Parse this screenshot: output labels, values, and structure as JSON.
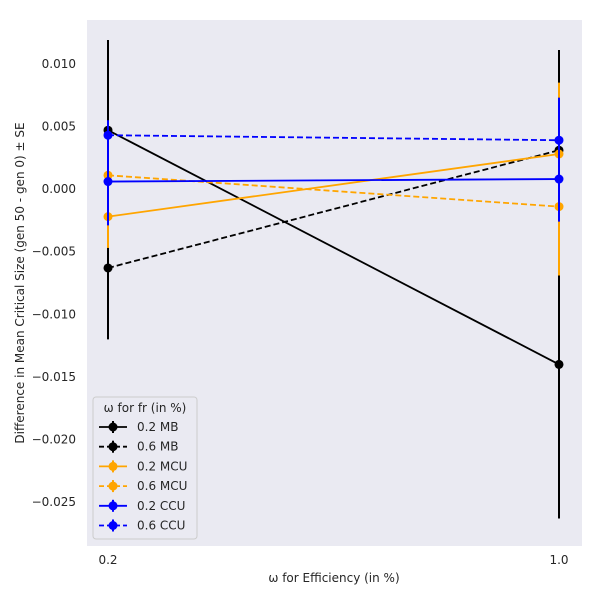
{
  "chart_data": {
    "type": "line",
    "xlabel": "ω for Efficiency (in %)",
    "ylabel": "Difference in Mean Critical Size (gen 50 - gen 0) ± SE",
    "x": [
      0.2,
      1.0
    ],
    "x_tick_labels": [
      "0.2",
      "1.0"
    ],
    "ylim": [
      -0.0285,
      0.0135
    ],
    "y_ticks": [
      0.01,
      0.005,
      0.0,
      -0.005,
      -0.01,
      -0.015,
      -0.02,
      -0.025
    ],
    "y_tick_labels": [
      "0.010",
      "0.005",
      "0.000",
      "−0.005",
      "−0.010",
      "−0.015",
      "−0.020",
      "−0.025"
    ],
    "grid": false,
    "background_color": "#eaeaf2",
    "legend": {
      "title": "ω for fr (in %)",
      "placement": "lower-left"
    },
    "series": [
      {
        "name": "0.2 MB",
        "color": "#000000",
        "dashed": false,
        "values": [
          0.0047,
          -0.014
        ],
        "errors": [
          0.0072,
          0.0123
        ]
      },
      {
        "name": "0.6 MB",
        "color": "#000000",
        "dashed": true,
        "values": [
          -0.0063,
          0.0031
        ],
        "errors": [
          0.0057,
          0.008
        ]
      },
      {
        "name": "0.2 MCU",
        "color": "#ffa500",
        "dashed": false,
        "values": [
          -0.0022,
          0.0028
        ],
        "errors": [
          0.0025,
          0.0057
        ]
      },
      {
        "name": "0.6 MCU",
        "color": "#ffa500",
        "dashed": true,
        "values": [
          0.0011,
          -0.0014
        ],
        "errors": [
          0.0035,
          0.0055
        ]
      },
      {
        "name": "0.2 CCU",
        "color": "#0000ff",
        "dashed": false,
        "values": [
          0.0006,
          0.0008
        ],
        "errors": [
          0.0035,
          0.0034
        ]
      },
      {
        "name": "0.6 CCU",
        "color": "#0000ff",
        "dashed": true,
        "values": [
          0.0043,
          0.0039
        ],
        "errors": [
          0.0012,
          0.0034
        ]
      }
    ]
  }
}
